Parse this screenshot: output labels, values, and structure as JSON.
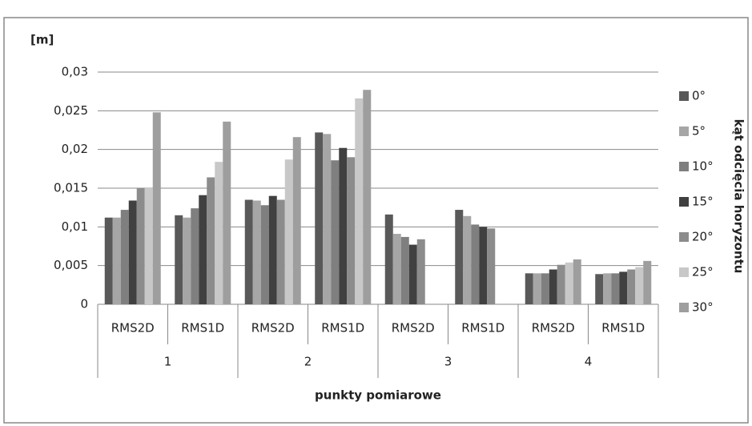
{
  "chart_data": {
    "type": "bar",
    "y_unit_label": "[m]",
    "x_axis_label": "punkty pomiarowe",
    "legend_title": "kąt odcięcia horyzontu",
    "categories": [
      "RMS2D",
      "RMS1D",
      "RMS2D",
      "RMS1D",
      "RMS2D",
      "RMS1D",
      "RMS2D",
      "RMS1D"
    ],
    "groups": [
      "1",
      "2",
      "3",
      "4"
    ],
    "series": [
      {
        "name": "0°",
        "color": "#595959",
        "values": [
          0.0112,
          0.0115,
          0.0135,
          0.0222,
          0.0116,
          0.0122,
          0.004,
          0.0039
        ]
      },
      {
        "name": "5°",
        "color": "#a6a6a6",
        "values": [
          0.0112,
          0.0112,
          0.0134,
          0.022,
          0.0091,
          0.0114,
          0.004,
          0.004
        ]
      },
      {
        "name": "10°",
        "color": "#7f7f7f",
        "values": [
          0.0122,
          0.0124,
          0.0128,
          0.0186,
          0.0087,
          0.0103,
          0.004,
          0.004
        ]
      },
      {
        "name": "15°",
        "color": "#404040",
        "values": [
          0.0134,
          0.0141,
          0.014,
          0.0202,
          0.0077,
          0.01,
          0.0045,
          0.0042
        ]
      },
      {
        "name": "20°",
        "color": "#8c8c8c",
        "values": [
          0.015,
          0.0164,
          0.0135,
          0.019,
          0.0084,
          0.0098,
          0.0051,
          0.0045
        ]
      },
      {
        "name": "25°",
        "color": "#c8c8c8",
        "values": [
          0.0151,
          0.0184,
          0.0187,
          0.0266,
          null,
          null,
          0.0054,
          0.0048
        ]
      },
      {
        "name": "30°",
        "color": "#9e9e9e",
        "values": [
          0.0248,
          0.0236,
          0.0216,
          0.0277,
          null,
          null,
          0.0058,
          0.0056
        ]
      }
    ],
    "ylim": [
      0,
      0.03
    ],
    "yticks": [
      0,
      {
        "value": 0.005,
        "label": "0,005"
      },
      {
        "value": 0.01,
        "label": "0,01"
      },
      {
        "value": 0.015,
        "label": "0,015"
      },
      {
        "value": 0.02,
        "label": "0,02"
      },
      {
        "value": 0.025,
        "label": "0,025"
      },
      {
        "value": 0.03,
        "label": "0,03"
      }
    ],
    "grid": true,
    "legend": "right"
  }
}
